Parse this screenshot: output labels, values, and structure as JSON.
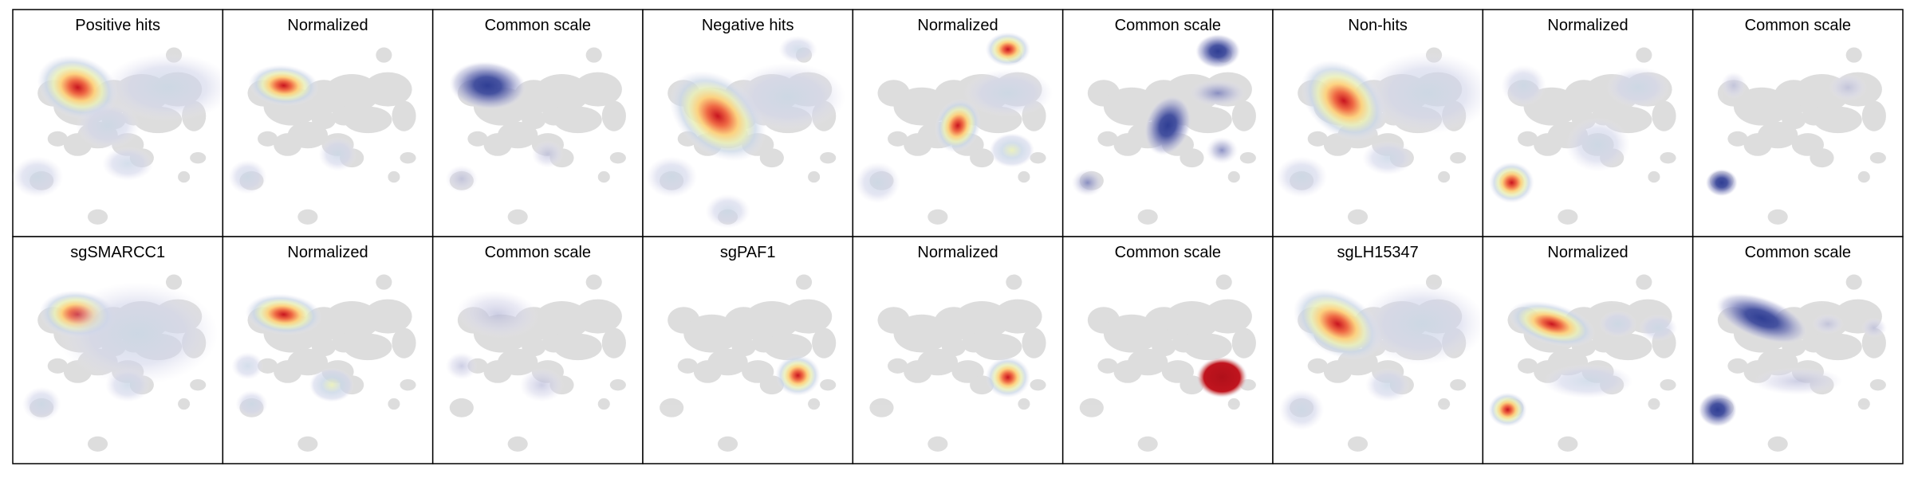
{
  "chart_data": {
    "type": "heatmap",
    "description_free": true,
    "rows": [
      {
        "panels": [
          {
            "title": "Positive hits",
            "scale": "raw",
            "hotspots": [
              {
                "x": 0.3,
                "y": 0.25,
                "rx": 0.13,
                "ry": 0.09,
                "rot": 20,
                "intensity": 1.0
              },
              {
                "x": 0.45,
                "y": 0.45,
                "rx": 0.1,
                "ry": 0.07,
                "rot": 0,
                "intensity": 0.35
              },
              {
                "x": 0.75,
                "y": 0.25,
                "rx": 0.2,
                "ry": 0.1,
                "rot": 0,
                "intensity": 0.3
              },
              {
                "x": 0.1,
                "y": 0.72,
                "rx": 0.08,
                "ry": 0.06,
                "rot": 0,
                "intensity": 0.25
              },
              {
                "x": 0.55,
                "y": 0.65,
                "rx": 0.08,
                "ry": 0.05,
                "rot": 0,
                "intensity": 0.2
              }
            ]
          },
          {
            "title": "Normalized",
            "scale": "normalized",
            "hotspots": [
              {
                "x": 0.28,
                "y": 0.24,
                "rx": 0.11,
                "ry": 0.06,
                "rot": 5,
                "intensity": 1.0
              },
              {
                "x": 0.55,
                "y": 0.6,
                "rx": 0.06,
                "ry": 0.05,
                "rot": 0,
                "intensity": 0.25
              },
              {
                "x": 0.1,
                "y": 0.72,
                "rx": 0.06,
                "ry": 0.05,
                "rot": 0,
                "intensity": 0.25
              }
            ]
          },
          {
            "title": "Common scale",
            "scale": "common",
            "hotspots": [
              {
                "x": 0.25,
                "y": 0.24,
                "rx": 0.12,
                "ry": 0.07,
                "rot": 5,
                "intensity": 0.95
              },
              {
                "x": 0.12,
                "y": 0.73,
                "rx": 0.05,
                "ry": 0.04,
                "rot": 0,
                "intensity": 0.3
              },
              {
                "x": 0.55,
                "y": 0.6,
                "rx": 0.05,
                "ry": 0.04,
                "rot": 0,
                "intensity": 0.2
              }
            ]
          },
          {
            "title": "Negative hits",
            "scale": "raw",
            "hotspots": [
              {
                "x": 0.35,
                "y": 0.4,
                "rx": 0.17,
                "ry": 0.11,
                "rot": 40,
                "intensity": 1.0
              },
              {
                "x": 0.7,
                "y": 0.3,
                "rx": 0.18,
                "ry": 0.1,
                "rot": 0,
                "intensity": 0.45
              },
              {
                "x": 0.75,
                "y": 0.05,
                "rx": 0.06,
                "ry": 0.04,
                "rot": 0,
                "intensity": 0.3
              },
              {
                "x": 0.12,
                "y": 0.72,
                "rx": 0.08,
                "ry": 0.06,
                "rot": 0,
                "intensity": 0.3
              },
              {
                "x": 0.4,
                "y": 0.9,
                "rx": 0.07,
                "ry": 0.05,
                "rot": 0,
                "intensity": 0.25
              }
            ]
          },
          {
            "title": "Normalized",
            "scale": "normalized",
            "hotspots": [
              {
                "x": 0.75,
                "y": 0.05,
                "rx": 0.07,
                "ry": 0.05,
                "rot": 0,
                "intensity": 1.0
              },
              {
                "x": 0.5,
                "y": 0.45,
                "rx": 0.07,
                "ry": 0.08,
                "rot": 20,
                "intensity": 0.95
              },
              {
                "x": 0.75,
                "y": 0.28,
                "rx": 0.14,
                "ry": 0.07,
                "rot": 0,
                "intensity": 0.4
              },
              {
                "x": 0.77,
                "y": 0.58,
                "rx": 0.07,
                "ry": 0.05,
                "rot": 0,
                "intensity": 0.6
              },
              {
                "x": 0.1,
                "y": 0.75,
                "rx": 0.07,
                "ry": 0.06,
                "rot": 0,
                "intensity": 0.45
              }
            ]
          },
          {
            "title": "Common scale",
            "scale": "common",
            "hotspots": [
              {
                "x": 0.75,
                "y": 0.06,
                "rx": 0.07,
                "ry": 0.05,
                "rot": 0,
                "intensity": 0.95
              },
              {
                "x": 0.5,
                "y": 0.45,
                "rx": 0.07,
                "ry": 0.09,
                "rot": 20,
                "intensity": 0.95
              },
              {
                "x": 0.75,
                "y": 0.28,
                "rx": 0.09,
                "ry": 0.04,
                "rot": 0,
                "intensity": 0.55
              },
              {
                "x": 0.77,
                "y": 0.58,
                "rx": 0.05,
                "ry": 0.04,
                "rot": 0,
                "intensity": 0.75
              },
              {
                "x": 0.1,
                "y": 0.75,
                "rx": 0.05,
                "ry": 0.04,
                "rot": 0,
                "intensity": 0.6
              }
            ]
          },
          {
            "title": "Non-hits",
            "scale": "raw",
            "hotspots": [
              {
                "x": 0.33,
                "y": 0.32,
                "rx": 0.15,
                "ry": 0.1,
                "rot": 40,
                "intensity": 1.0
              },
              {
                "x": 0.75,
                "y": 0.28,
                "rx": 0.2,
                "ry": 0.12,
                "rot": 0,
                "intensity": 0.35
              },
              {
                "x": 0.12,
                "y": 0.72,
                "rx": 0.08,
                "ry": 0.06,
                "rot": 0,
                "intensity": 0.3
              },
              {
                "x": 0.55,
                "y": 0.62,
                "rx": 0.08,
                "ry": 0.05,
                "rot": 0,
                "intensity": 0.25
              }
            ]
          },
          {
            "title": "Normalized",
            "scale": "normalized",
            "hotspots": [
              {
                "x": 0.12,
                "y": 0.75,
                "rx": 0.07,
                "ry": 0.06,
                "rot": 0,
                "intensity": 1.0
              },
              {
                "x": 0.18,
                "y": 0.24,
                "rx": 0.07,
                "ry": 0.06,
                "rot": 0,
                "intensity": 0.45
              },
              {
                "x": 0.75,
                "y": 0.25,
                "rx": 0.1,
                "ry": 0.06,
                "rot": 0,
                "intensity": 0.35
              },
              {
                "x": 0.55,
                "y": 0.55,
                "rx": 0.1,
                "ry": 0.08,
                "rot": 0,
                "intensity": 0.3
              }
            ]
          },
          {
            "title": "Common scale",
            "scale": "common",
            "hotspots": [
              {
                "x": 0.12,
                "y": 0.75,
                "rx": 0.05,
                "ry": 0.04,
                "rot": 0,
                "intensity": 0.95
              },
              {
                "x": 0.18,
                "y": 0.24,
                "rx": 0.04,
                "ry": 0.04,
                "rot": 0,
                "intensity": 0.25
              },
              {
                "x": 0.75,
                "y": 0.25,
                "rx": 0.06,
                "ry": 0.04,
                "rot": 0,
                "intensity": 0.25
              }
            ]
          }
        ]
      },
      {
        "panels": [
          {
            "title": "sgSMARCC1",
            "scale": "raw",
            "hotspots": [
              {
                "x": 0.3,
                "y": 0.25,
                "rx": 0.12,
                "ry": 0.07,
                "rot": 5,
                "intensity": 1.0
              },
              {
                "x": 0.6,
                "y": 0.35,
                "rx": 0.25,
                "ry": 0.15,
                "rot": 0,
                "intensity": 0.22
              },
              {
                "x": 0.55,
                "y": 0.62,
                "rx": 0.07,
                "ry": 0.05,
                "rot": 0,
                "intensity": 0.45
              },
              {
                "x": 0.12,
                "y": 0.72,
                "rx": 0.06,
                "ry": 0.05,
                "rot": 0,
                "intensity": 0.25
              }
            ]
          },
          {
            "title": "Normalized",
            "scale": "normalized",
            "hotspots": [
              {
                "x": 0.28,
                "y": 0.25,
                "rx": 0.12,
                "ry": 0.06,
                "rot": 5,
                "intensity": 1.0
              },
              {
                "x": 0.52,
                "y": 0.62,
                "rx": 0.07,
                "ry": 0.05,
                "rot": 0,
                "intensity": 0.6
              },
              {
                "x": 0.1,
                "y": 0.52,
                "rx": 0.05,
                "ry": 0.04,
                "rot": 0,
                "intensity": 0.3
              },
              {
                "x": 0.12,
                "y": 0.72,
                "rx": 0.05,
                "ry": 0.04,
                "rot": 0,
                "intensity": 0.25
              }
            ]
          },
          {
            "title": "Common scale",
            "scale": "common",
            "hotspots": [
              {
                "x": 0.3,
                "y": 0.25,
                "rx": 0.13,
                "ry": 0.07,
                "rot": 5,
                "intensity": 0.4
              },
              {
                "x": 0.52,
                "y": 0.62,
                "rx": 0.07,
                "ry": 0.05,
                "rot": 0,
                "intensity": 0.4
              },
              {
                "x": 0.12,
                "y": 0.52,
                "rx": 0.05,
                "ry": 0.04,
                "rot": 0,
                "intensity": 0.3
              }
            ]
          },
          {
            "title": "sgPAF1",
            "scale": "raw",
            "hotspots": [
              {
                "x": 0.75,
                "y": 0.57,
                "rx": 0.07,
                "ry": 0.06,
                "rot": 0,
                "intensity": 1.0
              }
            ]
          },
          {
            "title": "Normalized",
            "scale": "normalized",
            "hotspots": [
              {
                "x": 0.75,
                "y": 0.58,
                "rx": 0.07,
                "ry": 0.06,
                "rot": 0,
                "intensity": 1.0
              }
            ]
          },
          {
            "title": "Common scale",
            "scale": "common",
            "hotspots": [
              {
                "x": 0.77,
                "y": 0.58,
                "rx": 0.08,
                "ry": 0.06,
                "rot": 0,
                "intensity": 1.0
              }
            ]
          },
          {
            "title": "sgLH15347",
            "scale": "raw",
            "hotspots": [
              {
                "x": 0.3,
                "y": 0.3,
                "rx": 0.15,
                "ry": 0.09,
                "rot": 30,
                "intensity": 1.0
              },
              {
                "x": 0.72,
                "y": 0.3,
                "rx": 0.2,
                "ry": 0.12,
                "rot": 0,
                "intensity": 0.32
              },
              {
                "x": 0.12,
                "y": 0.75,
                "rx": 0.07,
                "ry": 0.06,
                "rot": 0,
                "intensity": 0.3
              },
              {
                "x": 0.55,
                "y": 0.62,
                "rx": 0.07,
                "ry": 0.05,
                "rot": 0,
                "intensity": 0.25
              }
            ]
          },
          {
            "title": "Normalized",
            "scale": "normalized",
            "hotspots": [
              {
                "x": 0.32,
                "y": 0.3,
                "rx": 0.14,
                "ry": 0.06,
                "rot": 15,
                "intensity": 1.0
              },
              {
                "x": 0.65,
                "y": 0.3,
                "rx": 0.06,
                "ry": 0.04,
                "rot": 0,
                "intensity": 0.45
              },
              {
                "x": 0.85,
                "y": 0.32,
                "rx": 0.06,
                "ry": 0.04,
                "rot": 0,
                "intensity": 0.35
              },
              {
                "x": 0.1,
                "y": 0.75,
                "rx": 0.06,
                "ry": 0.05,
                "rot": 0,
                "intensity": 0.85
              },
              {
                "x": 0.5,
                "y": 0.6,
                "rx": 0.14,
                "ry": 0.05,
                "rot": 0,
                "intensity": 0.35
              }
            ]
          },
          {
            "title": "Common scale",
            "scale": "common",
            "hotspots": [
              {
                "x": 0.32,
                "y": 0.27,
                "rx": 0.15,
                "ry": 0.06,
                "rot": 20,
                "intensity": 0.95
              },
              {
                "x": 0.65,
                "y": 0.3,
                "rx": 0.05,
                "ry": 0.03,
                "rot": 0,
                "intensity": 0.45
              },
              {
                "x": 0.88,
                "y": 0.32,
                "rx": 0.04,
                "ry": 0.03,
                "rot": 0,
                "intensity": 0.4
              },
              {
                "x": 0.1,
                "y": 0.75,
                "rx": 0.06,
                "ry": 0.05,
                "rot": 0,
                "intensity": 0.85
              },
              {
                "x": 0.5,
                "y": 0.6,
                "rx": 0.14,
                "ry": 0.04,
                "rot": 0,
                "intensity": 0.35
              }
            ]
          }
        ]
      }
    ]
  },
  "colors": {
    "background_cells": "#dcdcdc",
    "panel_border": "#000000",
    "raw_colormap": [
      "#f3f2f8",
      "#c9d6e6",
      "#e9efb8",
      "#fdd17c",
      "#ef6a45",
      "#c8141f"
    ],
    "common_colormap": [
      "#eceaf4",
      "#b7b9d8",
      "#7a80bb",
      "#3d4a9c"
    ]
  }
}
